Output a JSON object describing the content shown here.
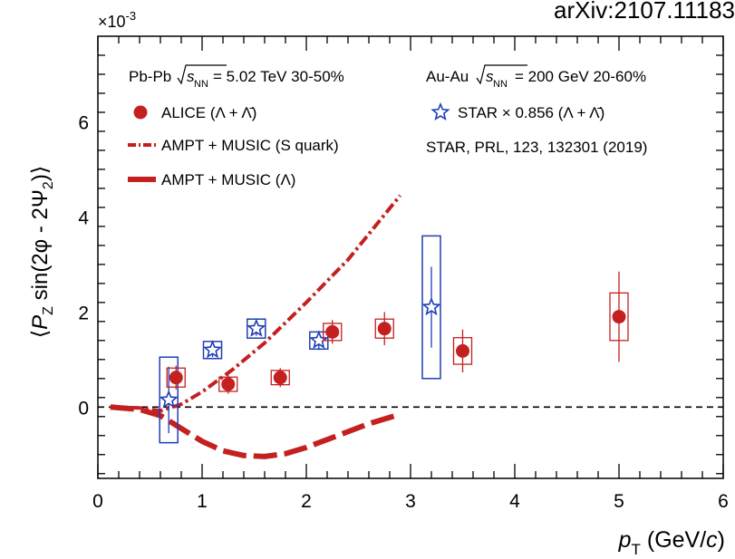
{
  "watermark": "arXiv:2107.11183",
  "chart_data": {
    "type": "scatter",
    "ylabel": "⟨P_Z sin(2φ − 2Ψ_2)⟩",
    "y_multiplier": "×10^-3",
    "xlabel": "p_T (GeV/c)",
    "xlim": [
      0,
      6
    ],
    "ylim": [
      -1.5,
      7.8
    ],
    "x_ticks": [
      0,
      1,
      2,
      3,
      4,
      5,
      6
    ],
    "y_ticks": [
      0,
      2,
      4,
      6
    ],
    "annotations": {
      "pbpb": "Pb-Pb √s_NN = 5.02 TeV 30-50%",
      "auau": "Au-Au √s_NN = 200 GeV 20-60%",
      "star_ref": "STAR, PRL, 123, 132301 (2019)"
    },
    "legend": [
      {
        "label": "ALICE (Λ + Λ̄)",
        "marker": "filled-circle"
      },
      {
        "label": "AMPT + MUSIC (S quark)",
        "marker": "dash-dot-line"
      },
      {
        "label": "AMPT + MUSIC (Λ)",
        "marker": "thick-dash-line"
      },
      {
        "label": "STAR × 0.856 (Λ + Λ̄)",
        "marker": "open-star"
      }
    ],
    "series": [
      {
        "name": "ALICE (Λ + Λ̄)",
        "color": "#c42020",
        "points": [
          {
            "x": 0.75,
            "y": 0.62,
            "err": 0.25,
            "sys": 0.2
          },
          {
            "x": 1.25,
            "y": 0.48,
            "err": 0.2,
            "sys": 0.15
          },
          {
            "x": 1.75,
            "y": 0.62,
            "err": 0.2,
            "sys": 0.15
          },
          {
            "x": 2.25,
            "y": 1.58,
            "err": 0.25,
            "sys": 0.18
          },
          {
            "x": 2.75,
            "y": 1.65,
            "err": 0.35,
            "sys": 0.2
          },
          {
            "x": 3.5,
            "y": 1.18,
            "err": 0.45,
            "sys": 0.28
          },
          {
            "x": 5.0,
            "y": 1.9,
            "err": 0.95,
            "sys": 0.5
          }
        ]
      },
      {
        "name": "STAR × 0.856 (Λ + Λ̄)",
        "color": "#1e3fb5",
        "points": [
          {
            "x": 0.68,
            "y": 0.15,
            "err": 0.7,
            "sys": 0.9
          },
          {
            "x": 1.1,
            "y": 1.2,
            "err": 0.15,
            "sys": 0.18
          },
          {
            "x": 1.52,
            "y": 1.65,
            "err": 0.15,
            "sys": 0.2
          },
          {
            "x": 2.12,
            "y": 1.4,
            "err": 0.2,
            "sys": 0.18
          },
          {
            "x": 3.2,
            "y": 2.1,
            "err": 0.85,
            "sys": 1.5
          }
        ]
      },
      {
        "name": "AMPT + MUSIC (S quark)",
        "color": "#c42020",
        "style": "dash-dot",
        "x": [
          0.12,
          0.4,
          0.6,
          0.8,
          1.0,
          1.3,
          1.6,
          2.0,
          2.4,
          2.9
        ],
        "y": [
          0.0,
          -0.02,
          -0.08,
          0.06,
          0.32,
          0.8,
          1.35,
          2.2,
          3.1,
          4.45
        ]
      },
      {
        "name": "AMPT + MUSIC (Λ)",
        "color": "#c42020",
        "style": "thick-dash",
        "x": [
          0.12,
          0.4,
          0.6,
          0.8,
          1.0,
          1.2,
          1.4,
          1.6,
          1.8,
          2.0,
          2.3,
          2.6,
          2.9
        ],
        "y": [
          0.0,
          -0.05,
          -0.18,
          -0.45,
          -0.72,
          -0.92,
          -1.02,
          -1.04,
          -0.98,
          -0.85,
          -0.6,
          -0.35,
          -0.15
        ]
      }
    ]
  }
}
